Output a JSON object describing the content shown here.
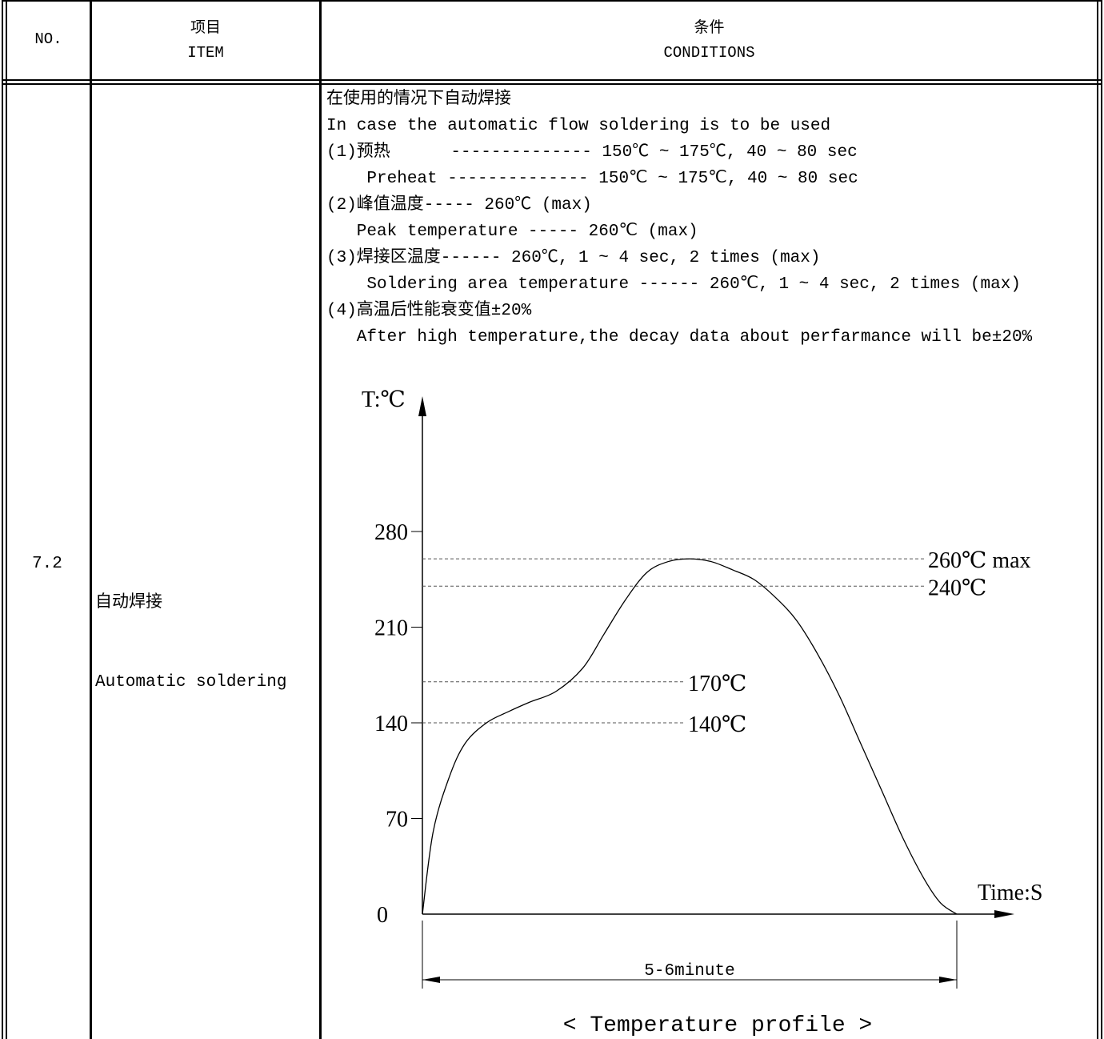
{
  "table": {
    "headers": {
      "no": "NO.",
      "item_zh": "项目",
      "item_en": "ITEM",
      "cond_zh": "条件",
      "cond_en": "CONDITIONS"
    },
    "row": {
      "no": "7.2",
      "item_zh": "自动焊接",
      "item_en": "Automatic soldering",
      "conditions": [
        "在使用的情况下自动焊接",
        "In case the automatic flow soldering is to be used",
        "(1)预热      -------------- 150℃ ~ 175℃, 40 ~ 80 sec",
        "    Preheat -------------- 150℃ ~ 175℃, 40 ~ 80 sec",
        "(2)峰值温度----- 260℃ (max)",
        "   Peak temperature ----- 260℃ (max)",
        "(3)焊接区温度------ 260℃, 1 ~ 4 sec, 2 times (max)",
        "    Soldering area temperature ------ 260℃, 1 ~ 4 sec, 2 times (max)",
        "(4)高温后性能衰变值±20%",
        "   After high temperature,the decay data about perfarmance will be±20%"
      ]
    }
  },
  "chart_data": {
    "type": "line",
    "title": "",
    "caption": "< Temperature profile >",
    "ylabel": "T:℃",
    "xlabel": "Time:S",
    "yticks": [
      0,
      70,
      140,
      210,
      280
    ],
    "ylim": [
      0,
      390
    ],
    "duration_label": "5-6minute",
    "reference_lines": [
      {
        "value": 260,
        "label": "260℃ max"
      },
      {
        "value": 240,
        "label": "240℃"
      },
      {
        "value": 170,
        "label": "170℃"
      },
      {
        "value": 140,
        "label": "140℃"
      }
    ],
    "series": [
      {
        "x": [
          0,
          0.02,
          0.05,
          0.08,
          0.12,
          0.16,
          0.2,
          0.25,
          0.3,
          0.34,
          0.38,
          0.42,
          0.46,
          0.5,
          0.54,
          0.58,
          0.62,
          0.66,
          0.7,
          0.74,
          0.78,
          0.82,
          0.86,
          0.9,
          0.94,
          0.97,
          1.0
        ],
        "y": [
          0,
          60,
          100,
          125,
          140,
          148,
          155,
          163,
          180,
          205,
          230,
          250,
          258,
          260,
          258,
          252,
          245,
          232,
          215,
          190,
          160,
          125,
          90,
          55,
          25,
          8,
          0
        ]
      }
    ]
  }
}
